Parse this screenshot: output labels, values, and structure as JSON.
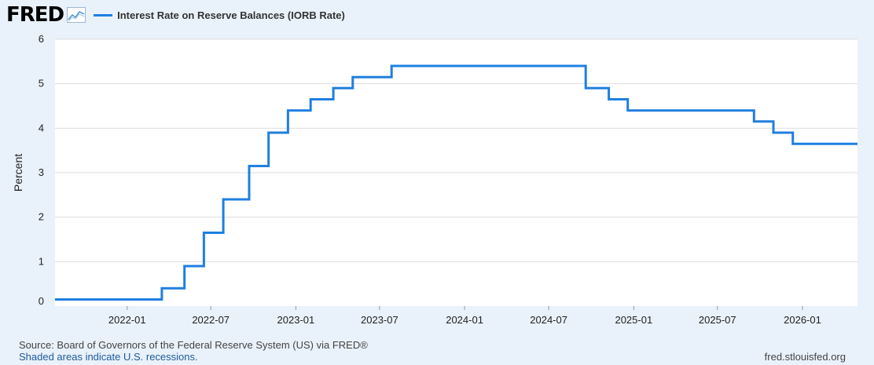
{
  "header": {
    "logo_text": "FRED",
    "logo_icon": "line-graph-icon"
  },
  "colors": {
    "series": "#1f7fe0",
    "background": "#e9f1fa",
    "plot_bg": "#ffffff",
    "grid": "#dddddd"
  },
  "footer": {
    "source": "Source: Board of Governors of the Federal Reserve System (US) via FRED®",
    "recessions": "Shaded areas indicate U.S. recessions.",
    "url": "fred.stlouisfed.org"
  },
  "chart_data": {
    "type": "line",
    "step": true,
    "ylabel": "Percent",
    "ylim": [
      0,
      6
    ],
    "yticks": [
      0,
      1,
      2,
      3,
      4,
      5,
      6
    ],
    "xlim": [
      "2021-07-29",
      "2026-04-30"
    ],
    "xticks": [
      "2022-01",
      "2022-07",
      "2023-01",
      "2023-07",
      "2024-01",
      "2024-07",
      "2025-01",
      "2025-07",
      "2026-01"
    ],
    "grid": true,
    "legend_position": "top",
    "series": [
      {
        "name": "Interest Rate on Reserve Balances (IORB Rate)",
        "points": [
          [
            "2021-07-29",
            0.15
          ],
          [
            "2022-03-17",
            0.4
          ],
          [
            "2022-05-05",
            0.9
          ],
          [
            "2022-06-16",
            1.65
          ],
          [
            "2022-07-28",
            2.4
          ],
          [
            "2022-09-22",
            3.15
          ],
          [
            "2022-11-03",
            3.9
          ],
          [
            "2022-12-15",
            4.4
          ],
          [
            "2023-02-02",
            4.65
          ],
          [
            "2023-03-23",
            4.9
          ],
          [
            "2023-05-04",
            5.15
          ],
          [
            "2023-07-27",
            5.4
          ],
          [
            "2024-09-19",
            4.9
          ],
          [
            "2024-11-08",
            4.65
          ],
          [
            "2024-12-19",
            4.4
          ],
          [
            "2025-09-18",
            4.15
          ],
          [
            "2025-10-30",
            3.9
          ],
          [
            "2025-12-11",
            3.65
          ],
          [
            "2026-04-30",
            3.65
          ]
        ]
      }
    ]
  }
}
